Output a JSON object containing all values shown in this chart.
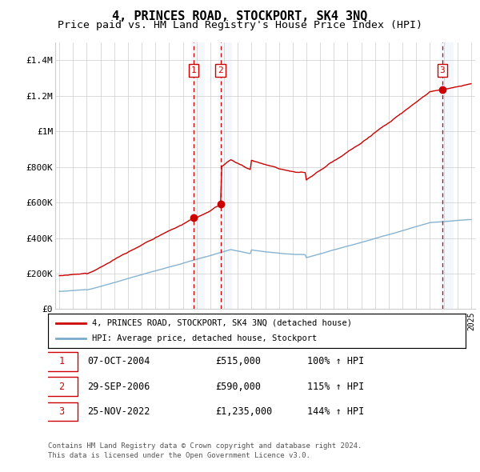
{
  "title": "4, PRINCES ROAD, STOCKPORT, SK4 3NQ",
  "subtitle": "Price paid vs. HM Land Registry's House Price Index (HPI)",
  "title_fontsize": 11,
  "subtitle_fontsize": 9.5,
  "ylim": [
    0,
    1500000
  ],
  "yticks": [
    0,
    200000,
    400000,
    600000,
    800000,
    1000000,
    1200000,
    1400000
  ],
  "ytick_labels": [
    "£0",
    "£200K",
    "£400K",
    "£600K",
    "£800K",
    "£1M",
    "£1.2M",
    "£1.4M"
  ],
  "x_start_year": 1995,
  "x_end_year": 2025,
  "background_color": "#ffffff",
  "grid_color": "#cccccc",
  "red_color": "#cc0000",
  "blue_color": "#7aabcc",
  "sale1_year": 2004.77,
  "sale1_price": 515000,
  "sale2_year": 2006.74,
  "sale2_price": 590000,
  "sale3_year": 2022.9,
  "sale3_price": 1235000,
  "sale1_label": "1",
  "sale2_label": "2",
  "sale3_label": "3",
  "legend_red": "4, PRINCES ROAD, STOCKPORT, SK4 3NQ (detached house)",
  "legend_blue": "HPI: Average price, detached house, Stockport",
  "table_rows": [
    [
      "1",
      "07-OCT-2004",
      "£515,000",
      "100% ↑ HPI"
    ],
    [
      "2",
      "29-SEP-2006",
      "£590,000",
      "115% ↑ HPI"
    ],
    [
      "3",
      "25-NOV-2022",
      "£1,235,000",
      "144% ↑ HPI"
    ]
  ],
  "footnote1": "Contains HM Land Registry data © Crown copyright and database right 2024.",
  "footnote2": "This data is licensed under the Open Government Licence v3.0."
}
